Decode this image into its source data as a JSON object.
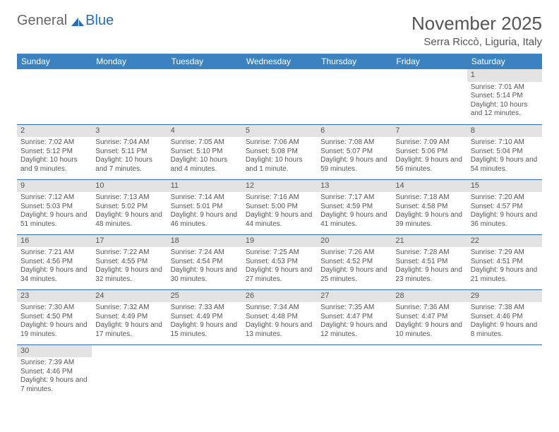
{
  "logo": {
    "text1": "General",
    "text2": "Blue"
  },
  "title": {
    "month": "November 2025",
    "location": "Serra Riccò, Liguria, Italy"
  },
  "colors": {
    "header_bg": "#3b83c0",
    "header_text": "#ffffff",
    "daynum_bg": "#e3e3e3",
    "border": "#2a6db5",
    "text": "#555555",
    "logo_gray": "#666666",
    "logo_blue": "#2a6db5"
  },
  "weekdays": [
    "Sunday",
    "Monday",
    "Tuesday",
    "Wednesday",
    "Thursday",
    "Friday",
    "Saturday"
  ],
  "weeks": [
    [
      {
        "empty": true
      },
      {
        "empty": true
      },
      {
        "empty": true
      },
      {
        "empty": true
      },
      {
        "empty": true
      },
      {
        "empty": true
      },
      {
        "day": "1",
        "sunrise": "Sunrise: 7:01 AM",
        "sunset": "Sunset: 5:14 PM",
        "daylight": "Daylight: 10 hours and 12 minutes."
      }
    ],
    [
      {
        "day": "2",
        "sunrise": "Sunrise: 7:02 AM",
        "sunset": "Sunset: 5:12 PM",
        "daylight": "Daylight: 10 hours and 9 minutes."
      },
      {
        "day": "3",
        "sunrise": "Sunrise: 7:04 AM",
        "sunset": "Sunset: 5:11 PM",
        "daylight": "Daylight: 10 hours and 7 minutes."
      },
      {
        "day": "4",
        "sunrise": "Sunrise: 7:05 AM",
        "sunset": "Sunset: 5:10 PM",
        "daylight": "Daylight: 10 hours and 4 minutes."
      },
      {
        "day": "5",
        "sunrise": "Sunrise: 7:06 AM",
        "sunset": "Sunset: 5:08 PM",
        "daylight": "Daylight: 10 hours and 1 minute."
      },
      {
        "day": "6",
        "sunrise": "Sunrise: 7:08 AM",
        "sunset": "Sunset: 5:07 PM",
        "daylight": "Daylight: 9 hours and 59 minutes."
      },
      {
        "day": "7",
        "sunrise": "Sunrise: 7:09 AM",
        "sunset": "Sunset: 5:06 PM",
        "daylight": "Daylight: 9 hours and 56 minutes."
      },
      {
        "day": "8",
        "sunrise": "Sunrise: 7:10 AM",
        "sunset": "Sunset: 5:04 PM",
        "daylight": "Daylight: 9 hours and 54 minutes."
      }
    ],
    [
      {
        "day": "9",
        "sunrise": "Sunrise: 7:12 AM",
        "sunset": "Sunset: 5:03 PM",
        "daylight": "Daylight: 9 hours and 51 minutes."
      },
      {
        "day": "10",
        "sunrise": "Sunrise: 7:13 AM",
        "sunset": "Sunset: 5:02 PM",
        "daylight": "Daylight: 9 hours and 48 minutes."
      },
      {
        "day": "11",
        "sunrise": "Sunrise: 7:14 AM",
        "sunset": "Sunset: 5:01 PM",
        "daylight": "Daylight: 9 hours and 46 minutes."
      },
      {
        "day": "12",
        "sunrise": "Sunrise: 7:16 AM",
        "sunset": "Sunset: 5:00 PM",
        "daylight": "Daylight: 9 hours and 44 minutes."
      },
      {
        "day": "13",
        "sunrise": "Sunrise: 7:17 AM",
        "sunset": "Sunset: 4:59 PM",
        "daylight": "Daylight: 9 hours and 41 minutes."
      },
      {
        "day": "14",
        "sunrise": "Sunrise: 7:18 AM",
        "sunset": "Sunset: 4:58 PM",
        "daylight": "Daylight: 9 hours and 39 minutes."
      },
      {
        "day": "15",
        "sunrise": "Sunrise: 7:20 AM",
        "sunset": "Sunset: 4:57 PM",
        "daylight": "Daylight: 9 hours and 36 minutes."
      }
    ],
    [
      {
        "day": "16",
        "sunrise": "Sunrise: 7:21 AM",
        "sunset": "Sunset: 4:56 PM",
        "daylight": "Daylight: 9 hours and 34 minutes."
      },
      {
        "day": "17",
        "sunrise": "Sunrise: 7:22 AM",
        "sunset": "Sunset: 4:55 PM",
        "daylight": "Daylight: 9 hours and 32 minutes."
      },
      {
        "day": "18",
        "sunrise": "Sunrise: 7:24 AM",
        "sunset": "Sunset: 4:54 PM",
        "daylight": "Daylight: 9 hours and 30 minutes."
      },
      {
        "day": "19",
        "sunrise": "Sunrise: 7:25 AM",
        "sunset": "Sunset: 4:53 PM",
        "daylight": "Daylight: 9 hours and 27 minutes."
      },
      {
        "day": "20",
        "sunrise": "Sunrise: 7:26 AM",
        "sunset": "Sunset: 4:52 PM",
        "daylight": "Daylight: 9 hours and 25 minutes."
      },
      {
        "day": "21",
        "sunrise": "Sunrise: 7:28 AM",
        "sunset": "Sunset: 4:51 PM",
        "daylight": "Daylight: 9 hours and 23 minutes."
      },
      {
        "day": "22",
        "sunrise": "Sunrise: 7:29 AM",
        "sunset": "Sunset: 4:51 PM",
        "daylight": "Daylight: 9 hours and 21 minutes."
      }
    ],
    [
      {
        "day": "23",
        "sunrise": "Sunrise: 7:30 AM",
        "sunset": "Sunset: 4:50 PM",
        "daylight": "Daylight: 9 hours and 19 minutes."
      },
      {
        "day": "24",
        "sunrise": "Sunrise: 7:32 AM",
        "sunset": "Sunset: 4:49 PM",
        "daylight": "Daylight: 9 hours and 17 minutes."
      },
      {
        "day": "25",
        "sunrise": "Sunrise: 7:33 AM",
        "sunset": "Sunset: 4:49 PM",
        "daylight": "Daylight: 9 hours and 15 minutes."
      },
      {
        "day": "26",
        "sunrise": "Sunrise: 7:34 AM",
        "sunset": "Sunset: 4:48 PM",
        "daylight": "Daylight: 9 hours and 13 minutes."
      },
      {
        "day": "27",
        "sunrise": "Sunrise: 7:35 AM",
        "sunset": "Sunset: 4:47 PM",
        "daylight": "Daylight: 9 hours and 12 minutes."
      },
      {
        "day": "28",
        "sunrise": "Sunrise: 7:36 AM",
        "sunset": "Sunset: 4:47 PM",
        "daylight": "Daylight: 9 hours and 10 minutes."
      },
      {
        "day": "29",
        "sunrise": "Sunrise: 7:38 AM",
        "sunset": "Sunset: 4:46 PM",
        "daylight": "Daylight: 9 hours and 8 minutes."
      }
    ],
    [
      {
        "day": "30",
        "sunrise": "Sunrise: 7:39 AM",
        "sunset": "Sunset: 4:46 PM",
        "daylight": "Daylight: 9 hours and 7 minutes."
      },
      {
        "empty": true
      },
      {
        "empty": true
      },
      {
        "empty": true
      },
      {
        "empty": true
      },
      {
        "empty": true
      },
      {
        "empty": true
      }
    ]
  ]
}
